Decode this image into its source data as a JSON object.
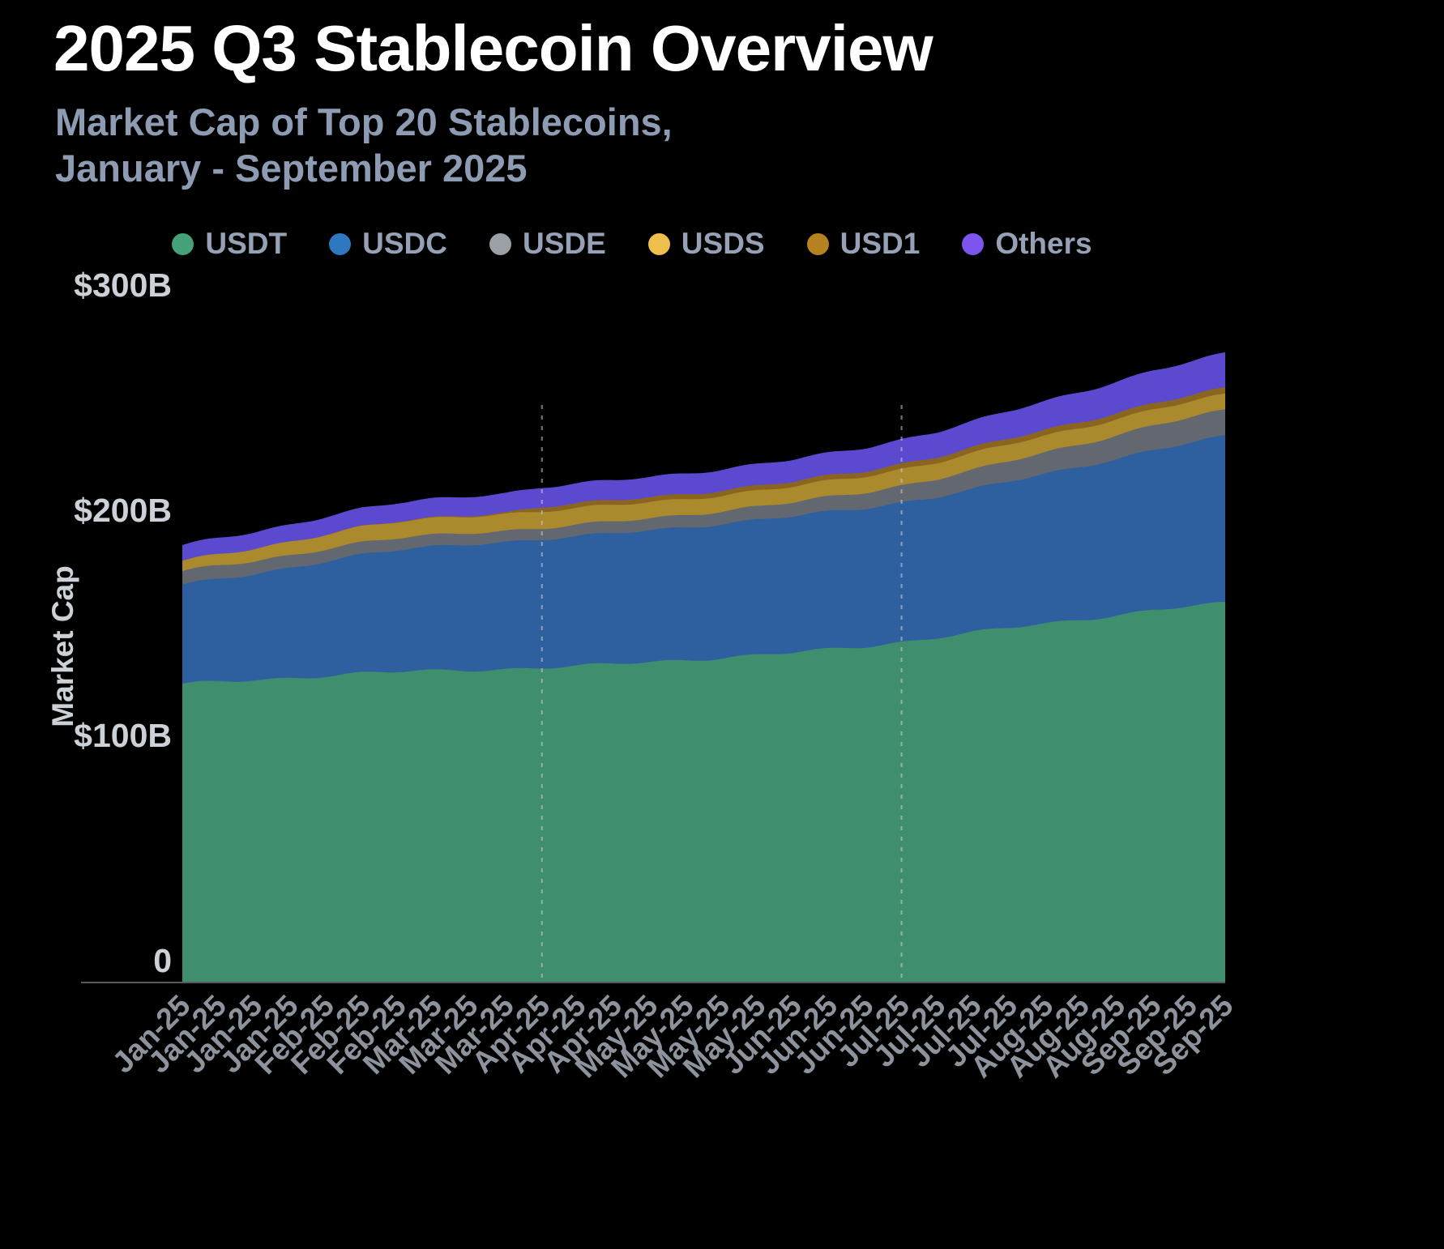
{
  "title": "2025 Q3 Stablecoin Overview",
  "subtitle_line1": "Market Cap of Top 20 Stablecoins,",
  "subtitle_line2": "January - September 2025",
  "y_axis": {
    "label": "Market Cap",
    "ticks": [
      {
        "label": "$300B",
        "value": 300
      },
      {
        "label": "$200B",
        "value": 200
      },
      {
        "label": "$100B",
        "value": 100
      },
      {
        "label": "0",
        "value": 0
      }
    ]
  },
  "colors": {
    "background": "#000000",
    "title": "#ffffff",
    "subtitle": "#8d9bb3",
    "axis_line": "#565a60",
    "tick_text": "#ccd1d8",
    "x_tick_text": "#8d939d",
    "quarter_divider": "#c9ced6"
  },
  "chart_data": {
    "type": "area",
    "stacked": true,
    "title": "Market Cap of Top 20 Stablecoins, January - September 2025",
    "xlabel": "",
    "ylabel": "Market Cap",
    "ylim": [
      0,
      300
    ],
    "unit": "USD billions",
    "legend_position": "top",
    "grid": false,
    "quarter_marker_indices": [
      10,
      20
    ],
    "x": [
      "Jan-25",
      "Jan-25",
      "Jan-25",
      "Jan-25",
      "Feb-25",
      "Feb-25",
      "Feb-25",
      "Mar-25",
      "Mar-25",
      "Mar-25",
      "Apr-25",
      "Apr-25",
      "Apr-25",
      "May-25",
      "May-25",
      "May-25",
      "May-25",
      "Jun-25",
      "Jun-25",
      "Jun-25",
      "Jul-25",
      "Jul-25",
      "Jul-25",
      "Jul-25",
      "Aug-25",
      "Aug-25",
      "Aug-25",
      "Sep-25",
      "Sep-25",
      "Sep-25"
    ],
    "series": [
      {
        "name": "USDT",
        "color": "#3f8e6d",
        "dot": "#45a17a",
        "values": [
          132,
          133,
          134,
          135,
          136,
          137,
          137.5,
          138,
          138.5,
          139,
          139.5,
          140,
          141,
          142,
          143,
          144,
          145,
          146,
          147.5,
          149,
          151,
          153,
          155,
          157,
          159,
          161,
          163,
          165,
          166.5,
          168
        ]
      },
      {
        "name": "USDC",
        "color": "#2e5f9e",
        "dot": "#2e78c0",
        "values": [
          44,
          45.5,
          47,
          49,
          51,
          52.5,
          54,
          55,
          56,
          56.5,
          57,
          57.5,
          58,
          58.5,
          59,
          59.5,
          60,
          60.5,
          61,
          61.5,
          62,
          62.5,
          63.5,
          65,
          66.5,
          68,
          69.5,
          71,
          72.5,
          74
        ]
      },
      {
        "name": "USDE",
        "color": "#636870",
        "dot": "#9aa0a6",
        "values": [
          6,
          6,
          5.8,
          5.6,
          5.5,
          5.4,
          5.3,
          5.2,
          5.1,
          5,
          5,
          5.1,
          5.2,
          5.3,
          5.5,
          5.7,
          5.9,
          6.2,
          6.6,
          7,
          7.5,
          8,
          8.5,
          9,
          9.5,
          10,
          10.5,
          11,
          11.3,
          11.5
        ]
      },
      {
        "name": "USDS",
        "color": "#ab8a2e",
        "dot": "#eebf4d",
        "values": [
          4.5,
          5,
          5.5,
          6,
          6.5,
          7,
          7.2,
          7.3,
          7.4,
          7.5,
          7.5,
          7.4,
          7.3,
          7.2,
          7.1,
          7,
          7,
          7,
          7.1,
          7.2,
          7.3,
          7.4,
          7.5,
          7.5,
          7.4,
          7.3,
          7.2,
          7.1,
          7,
          7
        ]
      },
      {
        "name": "USD1",
        "color": "#8a651f",
        "dot": "#b5821f",
        "values": [
          0,
          0,
          0,
          0,
          0.1,
          0.1,
          0.2,
          0.3,
          0.4,
          0.6,
          2,
          2.1,
          2.1,
          2.2,
          2.2,
          2.2,
          2.2,
          2.2,
          2.3,
          2.3,
          2.4,
          2.4,
          2.5,
          2.5,
          2.6,
          2.6,
          2.7,
          2.7,
          2.7,
          2.8
        ]
      },
      {
        "name": "Others",
        "color": "#5b4ad0",
        "dot": "#7c55ee",
        "values": [
          7,
          7.2,
          7.4,
          7.6,
          7.8,
          8,
          8.2,
          8.4,
          8.5,
          8.6,
          8.7,
          8.8,
          8.9,
          9,
          9.2,
          9.4,
          9.6,
          9.8,
          10,
          10.4,
          10.8,
          11.2,
          11.7,
          12.2,
          12.8,
          13.4,
          14,
          14.5,
          15,
          15.5
        ]
      }
    ]
  }
}
